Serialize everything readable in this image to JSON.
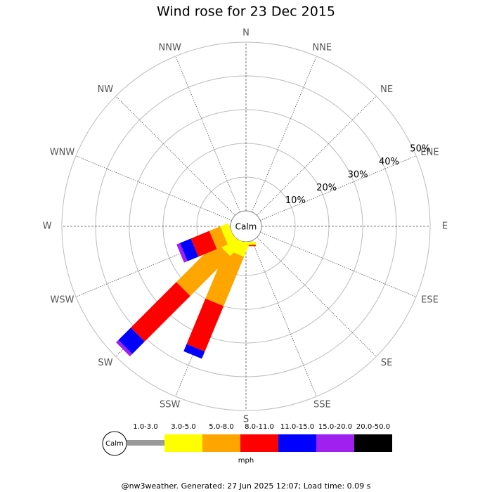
{
  "chart_data": {
    "type": "windrose",
    "title": "Wind rose for 23 Dec 2015",
    "center_label": "Calm",
    "directions": [
      "N",
      "NNE",
      "NE",
      "ENE",
      "E",
      "ESE",
      "SE",
      "SSE",
      "S",
      "SSW",
      "SW",
      "WSW",
      "W",
      "WNW",
      "NW",
      "NNW"
    ],
    "rlim": [
      0,
      50
    ],
    "rticks": [
      {
        "value": 10,
        "label": "10%"
      },
      {
        "value": 20,
        "label": "20%"
      },
      {
        "value": 30,
        "label": "30%"
      },
      {
        "value": 40,
        "label": "40%"
      },
      {
        "value": 50,
        "label": "50%"
      }
    ],
    "series": [
      {
        "name": "1.0-3.0",
        "color": "#999999",
        "values": [
          0,
          0,
          0,
          0,
          0,
          0,
          0,
          0,
          0,
          0,
          0,
          0,
          0,
          0,
          0,
          0
        ]
      },
      {
        "name": "3.0-5.0",
        "color": "#ffff00",
        "values": [
          0,
          0,
          0,
          0,
          0,
          0,
          0,
          0,
          0.8,
          4,
          5,
          2.5,
          0,
          0,
          0,
          0
        ]
      },
      {
        "name": "5.0-8.0",
        "color": "#ffa500",
        "values": [
          0,
          0,
          0,
          0,
          0,
          0,
          0,
          0,
          0.2,
          15.8,
          16.7,
          3.5,
          0,
          0,
          0,
          0
        ]
      },
      {
        "name": "8.0-11.0",
        "color": "#ff0000",
        "values": [
          0,
          0,
          0,
          0,
          0,
          0,
          0,
          0,
          0.3,
          14.6,
          19.1,
          5.9,
          0,
          0,
          0,
          0
        ]
      },
      {
        "name": "11.0-15.0",
        "color": "#0000ff",
        "values": [
          0,
          0,
          0,
          0,
          0,
          0,
          0,
          0,
          0,
          2.3,
          5.2,
          3.5,
          0,
          0,
          0,
          0
        ]
      },
      {
        "name": "15.0-20.0",
        "color": "#a020f0",
        "values": [
          0,
          0,
          0,
          0,
          0,
          0,
          0,
          0,
          0,
          0,
          1,
          1.1,
          0,
          0,
          0,
          0
        ]
      },
      {
        "name": "20.0-50.0",
        "color": "#000000",
        "values": [
          0,
          0,
          0,
          0,
          0,
          0,
          0,
          0,
          0,
          0,
          0,
          0,
          0,
          0,
          0,
          0
        ]
      }
    ],
    "legend_unit": "mph",
    "legend_calm": "Calm",
    "footer": "@nw3weather. Generated: 27 Jun 2025 12:07; Load time: 0.09 s"
  }
}
